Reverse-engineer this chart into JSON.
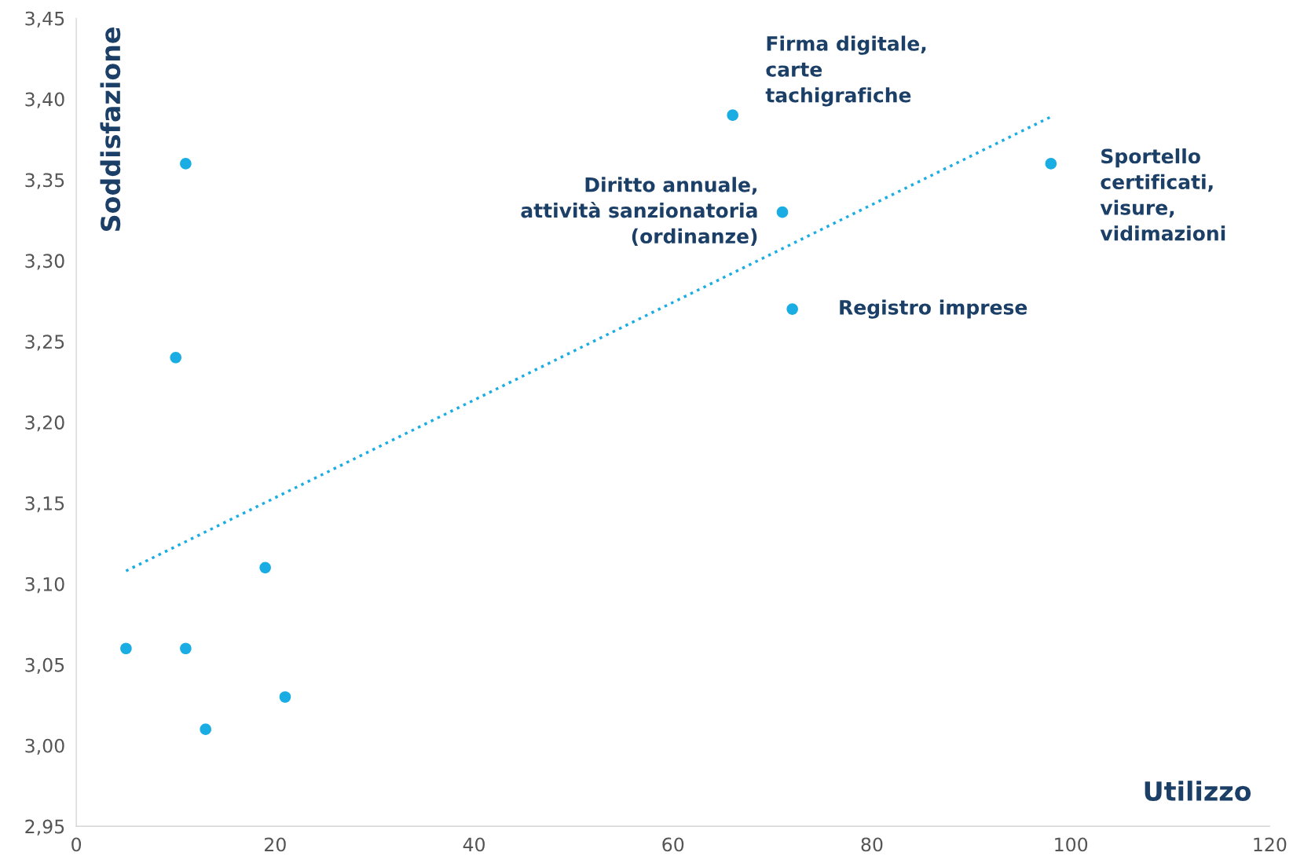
{
  "chart_data": {
    "type": "scatter",
    "xlabel": "Utilizzo",
    "ylabel": "Soddisfazione",
    "xlim": [
      0,
      120
    ],
    "xticks": [
      0,
      20,
      40,
      60,
      80,
      100,
      120
    ],
    "ylim": [
      2.95,
      3.45
    ],
    "yticks": [
      {
        "value": 2.95,
        "label": "2,95"
      },
      {
        "value": 3.0,
        "label": "3,00"
      },
      {
        "value": 3.05,
        "label": "3,05"
      },
      {
        "value": 3.1,
        "label": "3,10"
      },
      {
        "value": 3.15,
        "label": "3,15"
      },
      {
        "value": 3.2,
        "label": "3,20"
      },
      {
        "value": 3.25,
        "label": "3,25"
      },
      {
        "value": 3.3,
        "label": "3,30"
      },
      {
        "value": 3.35,
        "label": "3,35"
      },
      {
        "value": 3.4,
        "label": "3,40"
      },
      {
        "value": 3.45,
        "label": "3,45"
      }
    ],
    "grid": false,
    "series": [
      {
        "color": "#1aade4",
        "marker": "circle",
        "x": [
          5,
          10,
          11,
          11,
          13,
          19,
          21,
          66,
          71,
          72,
          98
        ],
        "values": [
          3.06,
          3.24,
          3.36,
          3.06,
          3.01,
          3.11,
          3.03,
          3.39,
          3.33,
          3.27,
          3.36
        ]
      },
      {
        "type": "line",
        "color": "#1aade4",
        "marker": "none",
        "line_style": "dotted",
        "x": [
          5,
          98
        ],
        "values": [
          3.108,
          3.389
        ]
      }
    ],
    "annotations": [
      {
        "text": "Firma digitale,\ncarte\ntachigrafiche",
        "x": 66,
        "y": 3.39
      },
      {
        "text": "Diritto annuale,\nattività sanzionatoria\n(ordinanze)",
        "x": 71,
        "y": 3.33
      },
      {
        "text": "Sportello\ncertificati,\nvisure,\nvidimazioni",
        "x": 98,
        "y": 3.36
      },
      {
        "text": "Registro imprese",
        "x": 72,
        "y": 3.27
      }
    ]
  }
}
